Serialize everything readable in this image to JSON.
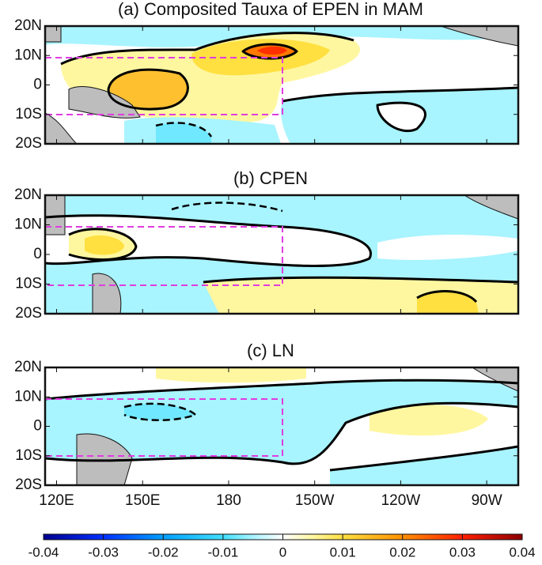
{
  "panels": [
    {
      "title": "(a) Composited Tauxa of EPEN in MAM"
    },
    {
      "title": "(b) CPEN"
    },
    {
      "title": "(c) LN"
    }
  ],
  "lon_lim": [
    116,
    281
  ],
  "lon_ticks": [
    {
      "value": 120,
      "label": "120E"
    },
    {
      "value": 150,
      "label": "150E"
    },
    180,
    {
      "value": 210,
      "label": "150W"
    },
    {
      "value": 240,
      "label": "120W"
    },
    {
      "value": 270,
      "label": "90W"
    }
  ],
  "lat_lim": [
    -20,
    20
  ],
  "lat_ticks": [
    {
      "value": 20,
      "label": "20N"
    },
    {
      "value": 10,
      "label": "10N"
    },
    0,
    {
      "value": -10,
      "label": "10S"
    },
    {
      "value": -20,
      "label": "20S"
    }
  ],
  "colorbar": {
    "lim": [
      -0.04,
      0.04
    ],
    "ticks": [
      -0.04,
      -0.03,
      -0.02,
      -0.01,
      0,
      0.01,
      0.02,
      0.03,
      0.04
    ]
  }
}
